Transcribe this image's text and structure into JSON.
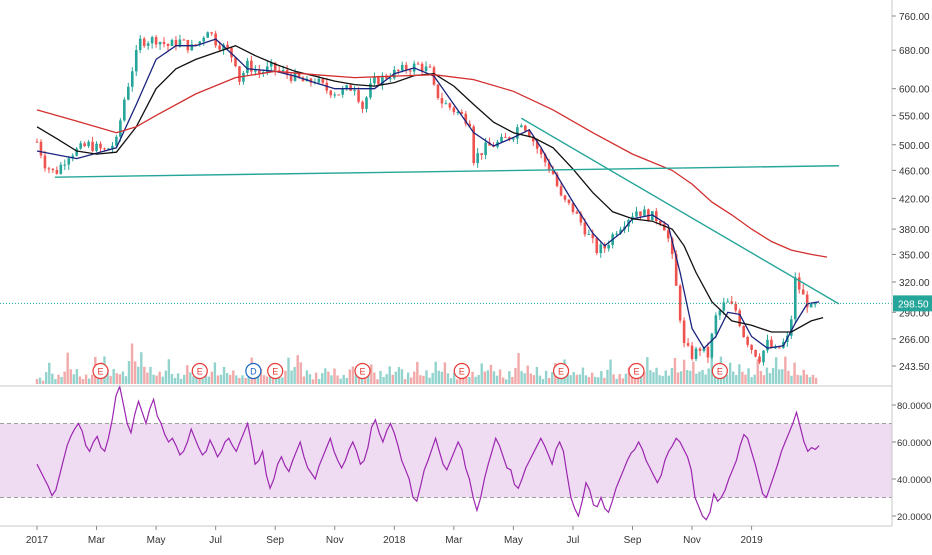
{
  "chart_data": [
    {
      "type": "candlestick",
      "title": "",
      "price_axis": {
        "scale": "log",
        "ticks": [
          "760.00",
          "680.00",
          "600.00",
          "550.00",
          "500.00",
          "460.00",
          "420.00",
          "380.00",
          "350.00",
          "320.00",
          "290.00",
          "266.00",
          "243.50"
        ],
        "tick_values": [
          760,
          680,
          600,
          550,
          500,
          460,
          420,
          380,
          350,
          320,
          290,
          266,
          243.5
        ]
      },
      "last_price": {
        "label": "298.50",
        "value": 298.5
      },
      "time_axis": {
        "ticks": [
          "2017",
          "Mar",
          "May",
          "Jul",
          "Sep",
          "Nov",
          "2018",
          "Mar",
          "May",
          "Jul",
          "Sep",
          "Nov",
          "2019"
        ]
      },
      "price_path": [
        {
          "t": 0,
          "v": 505
        },
        {
          "t": 0.2,
          "v": 470
        },
        {
          "t": 0.45,
          "v": 455
        },
        {
          "t": 0.8,
          "v": 485
        },
        {
          "t": 1.3,
          "v": 500
        },
        {
          "t": 1.7,
          "v": 490
        },
        {
          "t": 2.0,
          "v": 505
        },
        {
          "t": 2.2,
          "v": 580
        },
        {
          "t": 2.4,
          "v": 640
        },
        {
          "t": 2.6,
          "v": 700
        },
        {
          "t": 3.0,
          "v": 705
        },
        {
          "t": 3.3,
          "v": 690
        },
        {
          "t": 3.6,
          "v": 700
        },
        {
          "t": 3.9,
          "v": 685
        },
        {
          "t": 4.1,
          "v": 700
        },
        {
          "t": 4.3,
          "v": 730
        },
        {
          "t": 4.5,
          "v": 700
        },
        {
          "t": 4.8,
          "v": 680
        },
        {
          "t": 5.0,
          "v": 655
        },
        {
          "t": 5.1,
          "v": 618
        },
        {
          "t": 5.3,
          "v": 648
        },
        {
          "t": 5.6,
          "v": 632
        },
        {
          "t": 5.9,
          "v": 642
        },
        {
          "t": 6.2,
          "v": 632
        },
        {
          "t": 6.5,
          "v": 622
        },
        {
          "t": 6.8,
          "v": 610
        },
        {
          "t": 7.0,
          "v": 618
        },
        {
          "t": 7.3,
          "v": 598
        },
        {
          "t": 7.6,
          "v": 592
        },
        {
          "t": 8.0,
          "v": 605
        },
        {
          "t": 8.2,
          "v": 565
        },
        {
          "t": 8.45,
          "v": 612
        },
        {
          "t": 8.8,
          "v": 625
        },
        {
          "t": 9.2,
          "v": 638
        },
        {
          "t": 9.6,
          "v": 648
        },
        {
          "t": 9.9,
          "v": 635
        },
        {
          "t": 10.0,
          "v": 600
        },
        {
          "t": 10.2,
          "v": 575
        },
        {
          "t": 10.5,
          "v": 560
        },
        {
          "t": 10.9,
          "v": 540
        },
        {
          "t": 11.0,
          "v": 478
        },
        {
          "t": 11.3,
          "v": 495
        },
        {
          "t": 11.7,
          "v": 505
        },
        {
          "t": 12.0,
          "v": 518
        },
        {
          "t": 12.2,
          "v": 540
        },
        {
          "t": 12.4,
          "v": 520
        },
        {
          "t": 12.7,
          "v": 482
        },
        {
          "t": 13.0,
          "v": 455
        },
        {
          "t": 13.2,
          "v": 420
        },
        {
          "t": 13.5,
          "v": 405
        },
        {
          "t": 13.8,
          "v": 380
        },
        {
          "t": 14.1,
          "v": 355
        },
        {
          "t": 14.3,
          "v": 358
        },
        {
          "t": 14.6,
          "v": 380
        },
        {
          "t": 14.9,
          "v": 395
        },
        {
          "t": 15.1,
          "v": 404
        },
        {
          "t": 15.4,
          "v": 398
        },
        {
          "t": 15.7,
          "v": 392
        },
        {
          "t": 15.85,
          "v": 380
        },
        {
          "t": 16.0,
          "v": 345
        },
        {
          "t": 16.15,
          "v": 300
        },
        {
          "t": 16.3,
          "v": 260
        },
        {
          "t": 16.5,
          "v": 252
        },
        {
          "t": 16.7,
          "v": 258
        },
        {
          "t": 16.9,
          "v": 252
        },
        {
          "t": 17.1,
          "v": 285
        },
        {
          "t": 17.35,
          "v": 300
        },
        {
          "t": 17.6,
          "v": 292
        },
        {
          "t": 17.8,
          "v": 270
        },
        {
          "t": 18.0,
          "v": 258
        },
        {
          "t": 18.2,
          "v": 250
        },
        {
          "t": 18.4,
          "v": 262
        },
        {
          "t": 18.6,
          "v": 255
        },
        {
          "t": 18.8,
          "v": 262
        },
        {
          "t": 18.95,
          "v": 268
        },
        {
          "t": 19.1,
          "v": 322
        },
        {
          "t": 19.3,
          "v": 305
        },
        {
          "t": 19.5,
          "v": 293
        },
        {
          "t": 19.7,
          "v": 298
        }
      ],
      "moving_averages": [
        {
          "color": "#1a237e",
          "period": "short",
          "path": [
            {
              "t": 0,
              "v": 490
            },
            {
              "t": 1,
              "v": 478
            },
            {
              "t": 2,
              "v": 495
            },
            {
              "t": 2.5,
              "v": 570
            },
            {
              "t": 3,
              "v": 660
            },
            {
              "t": 3.5,
              "v": 690
            },
            {
              "t": 4,
              "v": 690
            },
            {
              "t": 4.5,
              "v": 705
            },
            {
              "t": 5,
              "v": 665
            },
            {
              "t": 5.3,
              "v": 640
            },
            {
              "t": 6,
              "v": 635
            },
            {
              "t": 6.5,
              "v": 625
            },
            {
              "t": 7,
              "v": 612
            },
            {
              "t": 7.5,
              "v": 600
            },
            {
              "t": 8,
              "v": 600
            },
            {
              "t": 8.5,
              "v": 600
            },
            {
              "t": 9,
              "v": 630
            },
            {
              "t": 9.5,
              "v": 642
            },
            {
              "t": 10,
              "v": 625
            },
            {
              "t": 10.5,
              "v": 570
            },
            {
              "t": 11,
              "v": 520
            },
            {
              "t": 11.5,
              "v": 498
            },
            {
              "t": 12,
              "v": 512
            },
            {
              "t": 12.4,
              "v": 525
            },
            {
              "t": 12.7,
              "v": 495
            },
            {
              "t": 13,
              "v": 462
            },
            {
              "t": 13.5,
              "v": 415
            },
            {
              "t": 14,
              "v": 375
            },
            {
              "t": 14.3,
              "v": 360
            },
            {
              "t": 14.7,
              "v": 375
            },
            {
              "t": 15,
              "v": 393
            },
            {
              "t": 15.5,
              "v": 398
            },
            {
              "t": 15.9,
              "v": 385
            },
            {
              "t": 16.2,
              "v": 330
            },
            {
              "t": 16.5,
              "v": 275
            },
            {
              "t": 16.8,
              "v": 258
            },
            {
              "t": 17.1,
              "v": 268
            },
            {
              "t": 17.4,
              "v": 290
            },
            {
              "t": 17.7,
              "v": 288
            },
            {
              "t": 18,
              "v": 268
            },
            {
              "t": 18.4,
              "v": 258
            },
            {
              "t": 18.8,
              "v": 260
            },
            {
              "t": 19.1,
              "v": 280
            },
            {
              "t": 19.4,
              "v": 298
            },
            {
              "t": 19.7,
              "v": 300
            }
          ]
        },
        {
          "color": "#111111",
          "period": "medium",
          "path": [
            {
              "t": 0,
              "v": 530
            },
            {
              "t": 0.5,
              "v": 510
            },
            {
              "t": 1,
              "v": 490
            },
            {
              "t": 1.5,
              "v": 485
            },
            {
              "t": 2,
              "v": 488
            },
            {
              "t": 2.5,
              "v": 530
            },
            {
              "t": 3,
              "v": 600
            },
            {
              "t": 3.5,
              "v": 640
            },
            {
              "t": 4,
              "v": 660
            },
            {
              "t": 4.5,
              "v": 675
            },
            {
              "t": 5,
              "v": 690
            },
            {
              "t": 5.5,
              "v": 668
            },
            {
              "t": 6,
              "v": 650
            },
            {
              "t": 6.5,
              "v": 635
            },
            {
              "t": 7,
              "v": 625
            },
            {
              "t": 7.5,
              "v": 615
            },
            {
              "t": 8,
              "v": 608
            },
            {
              "t": 8.5,
              "v": 605
            },
            {
              "t": 9,
              "v": 612
            },
            {
              "t": 9.5,
              "v": 626
            },
            {
              "t": 10,
              "v": 630
            },
            {
              "t": 10.5,
              "v": 605
            },
            {
              "t": 11,
              "v": 570
            },
            {
              "t": 11.5,
              "v": 538
            },
            {
              "t": 12,
              "v": 520
            },
            {
              "t": 12.5,
              "v": 512
            },
            {
              "t": 13,
              "v": 495
            },
            {
              "t": 13.5,
              "v": 462
            },
            {
              "t": 14,
              "v": 428
            },
            {
              "t": 14.5,
              "v": 402
            },
            {
              "t": 15,
              "v": 393
            },
            {
              "t": 15.5,
              "v": 390
            },
            {
              "t": 16,
              "v": 380
            },
            {
              "t": 16.3,
              "v": 360
            },
            {
              "t": 16.6,
              "v": 330
            },
            {
              "t": 17,
              "v": 300
            },
            {
              "t": 17.5,
              "v": 282
            },
            {
              "t": 18,
              "v": 278
            },
            {
              "t": 18.5,
              "v": 272
            },
            {
              "t": 19,
              "v": 272
            },
            {
              "t": 19.5,
              "v": 282
            },
            {
              "t": 19.8,
              "v": 285
            }
          ]
        },
        {
          "color": "#d32f2f",
          "period": "long",
          "path": [
            {
              "t": 0,
              "v": 560
            },
            {
              "t": 1,
              "v": 540
            },
            {
              "t": 2,
              "v": 520
            },
            {
              "t": 2.5,
              "v": 530
            },
            {
              "t": 3,
              "v": 550
            },
            {
              "t": 4,
              "v": 590
            },
            {
              "t": 5,
              "v": 622
            },
            {
              "t": 6,
              "v": 635
            },
            {
              "t": 7,
              "v": 628
            },
            {
              "t": 8,
              "v": 622
            },
            {
              "t": 9,
              "v": 625
            },
            {
              "t": 10,
              "v": 628
            },
            {
              "t": 11,
              "v": 618
            },
            {
              "t": 12,
              "v": 595
            },
            {
              "t": 13,
              "v": 560
            },
            {
              "t": 14,
              "v": 520
            },
            {
              "t": 15,
              "v": 485
            },
            {
              "t": 16,
              "v": 460
            },
            {
              "t": 16.5,
              "v": 440
            },
            {
              "t": 17,
              "v": 415
            },
            {
              "t": 17.5,
              "v": 398
            },
            {
              "t": 18,
              "v": 380
            },
            {
              "t": 18.5,
              "v": 365
            },
            {
              "t": 19,
              "v": 355
            },
            {
              "t": 19.5,
              "v": 350
            },
            {
              "t": 19.9,
              "v": 347
            }
          ]
        }
      ],
      "trendlines": [
        {
          "color": "#26a69a",
          "from": {
            "t": 0.45,
            "v": 450
          },
          "to": {
            "t": 20.2,
            "v": 467
          }
        },
        {
          "color": "#26a69a",
          "from": {
            "t": 12.2,
            "v": 545
          },
          "to": {
            "t": 20.2,
            "v": 298
          }
        }
      ],
      "volume_bars_relative": [
        0.2,
        0.5,
        0.3,
        0.8,
        0.4,
        0.3,
        0.6,
        0.9,
        0.5,
        0.4,
        1.0,
        0.7,
        0.5,
        0.4,
        0.6,
        0.3,
        0.5,
        0.4,
        0.3,
        0.5,
        0.6,
        0.4,
        0.3,
        0.7,
        0.5,
        0.3,
        0.4,
        0.6,
        0.9,
        0.4,
        0.3,
        0.5,
        0.4,
        0.3,
        0.6,
        0.4,
        0.5,
        0.3,
        0.4,
        0.6,
        0.3,
        0.5,
        0.4,
        0.7,
        0.5,
        0.3,
        0.4,
        0.3,
        0.5,
        0.6,
        0.4,
        0.3,
        0.8,
        0.6,
        0.4,
        0.3,
        0.5,
        0.6,
        0.4,
        0.5,
        0.3,
        0.4,
        0.6,
        0.3,
        0.5,
        0.4,
        0.6,
        0.5,
        0.4,
        0.7,
        0.8,
        0.6,
        0.5,
        0.9,
        0.7,
        0.6,
        0.5,
        0.4,
        0.6,
        0.5,
        0.7,
        0.6,
        0.5,
        0.4,
        0.3
      ],
      "event_markers": [
        {
          "label": "E",
          "t": 1.6
        },
        {
          "label": "E",
          "t": 4.1
        },
        {
          "label": "D",
          "t": 5.45
        },
        {
          "label": "E",
          "t": 6.0
        },
        {
          "label": "E",
          "t": 8.2
        },
        {
          "label": "E",
          "t": 10.7
        },
        {
          "label": "E",
          "t": 13.2
        },
        {
          "label": "E",
          "t": 15.1
        },
        {
          "label": "E",
          "t": 17.2
        }
      ]
    },
    {
      "type": "line",
      "title": "",
      "indicator": "RSI",
      "color": "#9c27b0",
      "band_color": "#e1bee7",
      "axis": {
        "ticks": [
          "80.0000",
          "60.0000",
          "40.0000",
          "20.0000"
        ],
        "tick_values": [
          80,
          60,
          40,
          20
        ],
        "ylim": [
          15,
          88
        ]
      },
      "bands": {
        "upper": 70,
        "lower": 30
      },
      "values": [
        48,
        44,
        40,
        36,
        31,
        34,
        42,
        50,
        58,
        63,
        67,
        70,
        66,
        58,
        55,
        60,
        63,
        57,
        55,
        62,
        72,
        85,
        90,
        80,
        70,
        65,
        75,
        82,
        76,
        70,
        78,
        83,
        74,
        70,
        64,
        60,
        62,
        58,
        53,
        55,
        60,
        67,
        62,
        57,
        53,
        55,
        61,
        57,
        52,
        55,
        60,
        62,
        58,
        55,
        60,
        65,
        70,
        60,
        48,
        50,
        55,
        42,
        35,
        40,
        48,
        52,
        47,
        44,
        50,
        55,
        60,
        52,
        46,
        43,
        40,
        47,
        52,
        57,
        62,
        55,
        50,
        46,
        50,
        56,
        60,
        55,
        48,
        50,
        57,
        68,
        72,
        65,
        60,
        66,
        70,
        65,
        58,
        50,
        45,
        40,
        30,
        28,
        36,
        45,
        50,
        56,
        62,
        55,
        48,
        45,
        50,
        55,
        60,
        56,
        46,
        40,
        30,
        23,
        30,
        40,
        48,
        55,
        62,
        58,
        52,
        46,
        45,
        37,
        35,
        40,
        46,
        50,
        54,
        58,
        62,
        58,
        53,
        48,
        56,
        60,
        55,
        42,
        30,
        24,
        20,
        28,
        38,
        34,
        26,
        25,
        30,
        24,
        22,
        28,
        35,
        40,
        45,
        50,
        54,
        56,
        60,
        56,
        50,
        46,
        42,
        38,
        42,
        50,
        55,
        58,
        62,
        60,
        56,
        52,
        45,
        30,
        25,
        20,
        18,
        22,
        32,
        28,
        30,
        34,
        40,
        45,
        50,
        58,
        64,
        62,
        55,
        48,
        40,
        32,
        30,
        36,
        42,
        48,
        55,
        60,
        65,
        70,
        76,
        68,
        60,
        55,
        57,
        56,
        58
      ]
    }
  ]
}
